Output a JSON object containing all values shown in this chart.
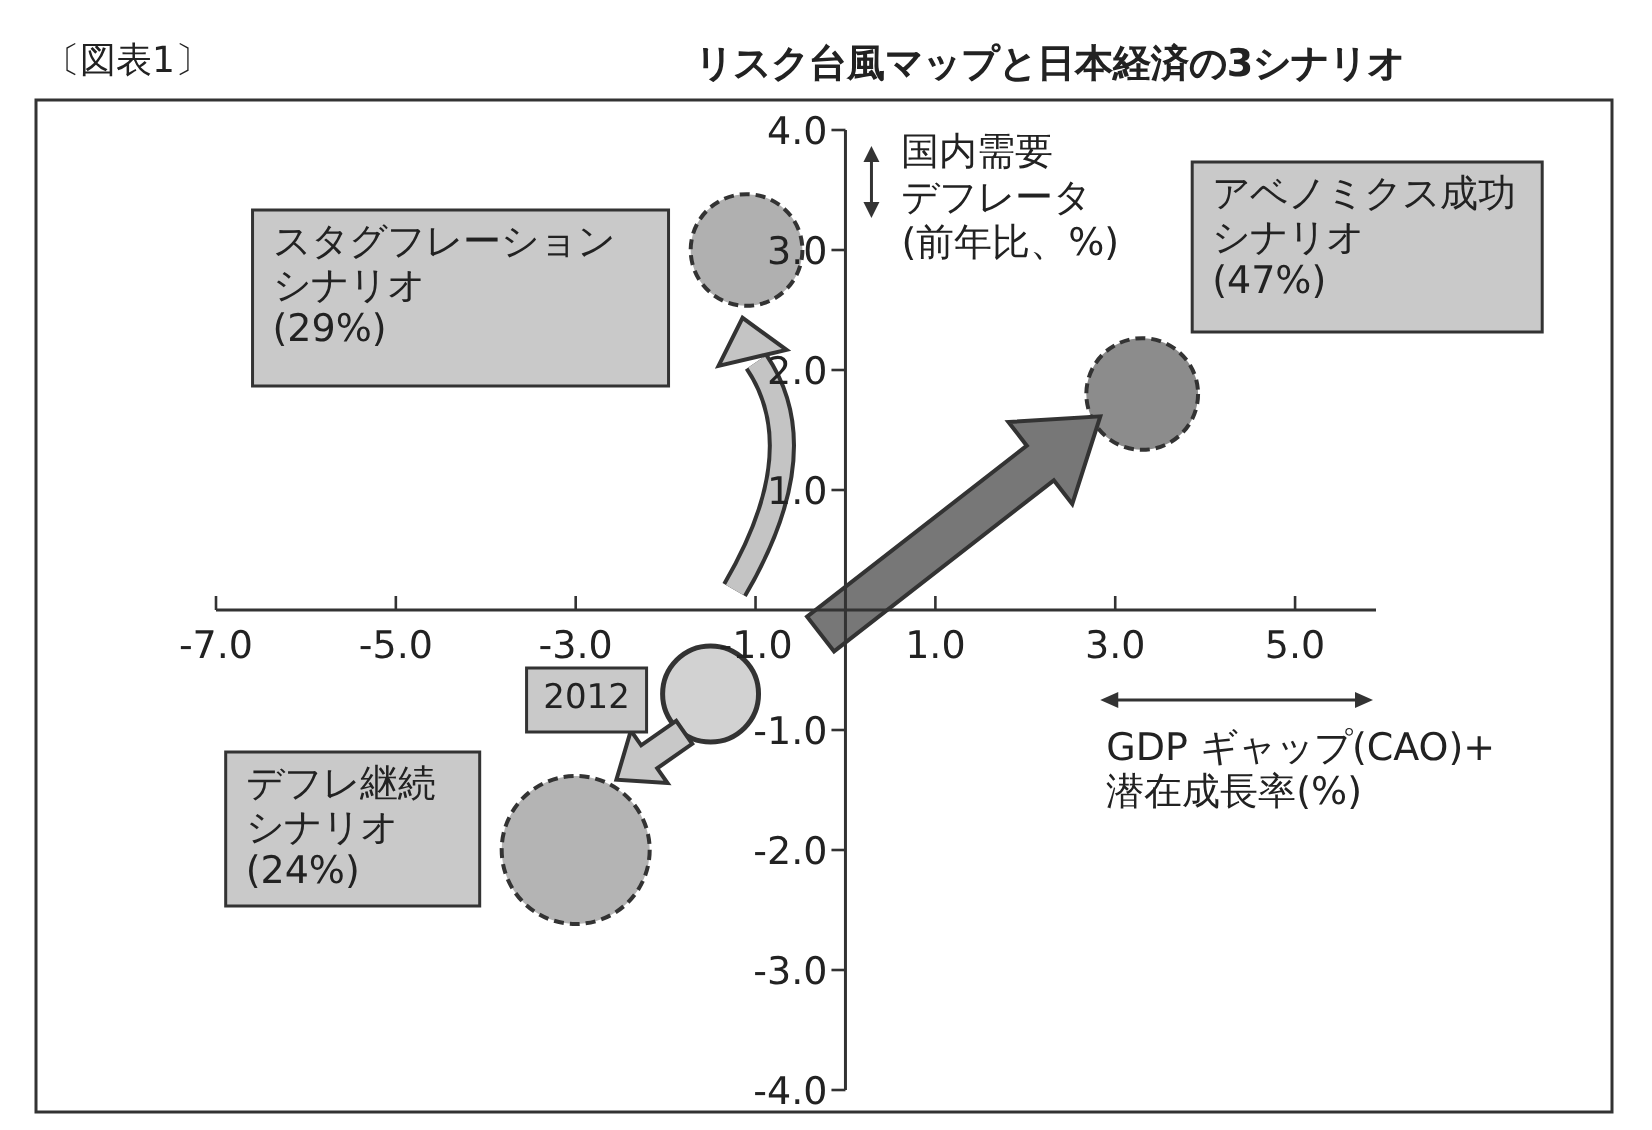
{
  "chart_data": {
    "type": "bubble",
    "title": "リスク台風マップと日本経済の3シナリオ",
    "xlabel": "GDP ギャップ(CAO)+\n潜在成長率(%)",
    "ylabel": "国内需要デフレータ(前年比、%)",
    "x": [
      -1.1,
      3.3,
      -3.0,
      -1.5
    ],
    "values": [
      3.0,
      1.8,
      -2.0,
      -0.7
    ],
    "sizes": [
      0.57,
      0.57,
      1,
      0.42
    ],
    "colors": [
      "#b0b0b0",
      "#8c8c8c",
      "#b4b4b4",
      "#d2d2d2"
    ],
    "xlim": [
      -7,
      5.9
    ],
    "ylim": [
      -4,
      4
    ],
    "xticks": [
      {
        "value": -7,
        "label": "-7.0"
      },
      {
        "value": -5,
        "label": "-5.0"
      },
      {
        "value": -3,
        "label": "-3.0"
      },
      {
        "value": -1,
        "label": "-1.0"
      },
      {
        "value": 1,
        "label": "1.0"
      },
      {
        "value": 3,
        "label": "3.0"
      },
      {
        "value": 5,
        "label": "5.0"
      }
    ],
    "yticks": [
      {
        "value": 4,
        "label": "4.0"
      },
      {
        "value": 3,
        "label": "3.0"
      },
      {
        "value": 2,
        "label": "2.0"
      },
      {
        "value": 1,
        "label": "1.0"
      },
      {
        "value": -1,
        "label": "-1.0"
      },
      {
        "value": -2,
        "label": "-2.0"
      },
      {
        "value": -3,
        "label": "-3.0"
      },
      {
        "value": -4,
        "label": "-4.0"
      }
    ],
    "annotations": [
      "スタグフレーションシナリオ(29%)",
      "アベノミクス成功シナリオ(47%)",
      "デフレ継続シナリオ(24%)",
      "2012",
      "〔図表1〕"
    ]
  }
}
